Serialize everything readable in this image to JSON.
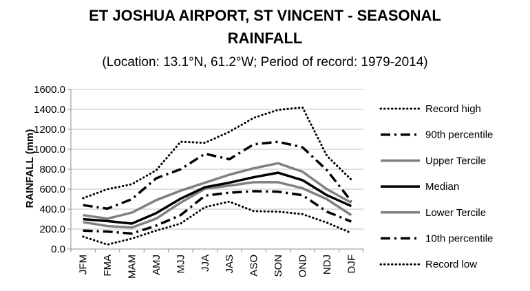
{
  "chart_data": {
    "type": "line",
    "title_line1": "ET JOSHUA AIRPORT, ST VINCENT - SEASONAL",
    "title_line2": "RAINFALL",
    "subtitle": "(Location: 13.1°N, 61.2°W; Period of record: 1979-2014)",
    "xlabel": "",
    "ylabel": "RAINFALL (mm)",
    "ylim": [
      0,
      1600
    ],
    "yticks": [
      "0.0",
      "200.0",
      "400.0",
      "600.0",
      "800.0",
      "1000.0",
      "1200.0",
      "1400.0",
      "1600.0"
    ],
    "categories": [
      "JFM",
      "FMA",
      "MAM",
      "AMJ",
      "MJJ",
      "JJA",
      "JAS",
      "ASO",
      "SON",
      "OND",
      "NDJ",
      "DJF"
    ],
    "grid": true,
    "legend_position": "right",
    "series": [
      {
        "name": "Record high",
        "style": "dotted",
        "color": "#000000",
        "width": 3,
        "values": [
          510,
          600,
          650,
          790,
          1075,
          1065,
          1175,
          1315,
          1395,
          1420,
          935,
          695
        ]
      },
      {
        "name": "90th percentile",
        "style": "dashdot",
        "color": "#000000",
        "width": 3.5,
        "values": [
          440,
          405,
          500,
          710,
          800,
          955,
          900,
          1050,
          1075,
          1020,
          790,
          480
        ]
      },
      {
        "name": "Upper Tercile",
        "style": "solid",
        "color": "#808080",
        "width": 3.5,
        "values": [
          340,
          305,
          365,
          490,
          585,
          665,
          745,
          810,
          860,
          775,
          600,
          465
        ]
      },
      {
        "name": "Median",
        "style": "solid",
        "color": "#000000",
        "width": 3.5,
        "values": [
          300,
          280,
          255,
          360,
          505,
          620,
          665,
          720,
          765,
          690,
          540,
          430
        ]
      },
      {
        "name": "Lower Tercile",
        "style": "solid",
        "color": "#808080",
        "width": 3.5,
        "values": [
          270,
          230,
          215,
          305,
          465,
          605,
          635,
          670,
          670,
          610,
          500,
          340
        ]
      },
      {
        "name": "10th percentile",
        "style": "dashdot",
        "color": "#000000",
        "width": 3.5,
        "values": [
          185,
          175,
          155,
          235,
          340,
          535,
          565,
          580,
          575,
          540,
          375,
          275
        ]
      },
      {
        "name": "Record low",
        "style": "dotted",
        "color": "#000000",
        "width": 3,
        "values": [
          125,
          45,
          105,
          185,
          255,
          420,
          475,
          380,
          375,
          350,
          265,
          160
        ]
      }
    ]
  }
}
